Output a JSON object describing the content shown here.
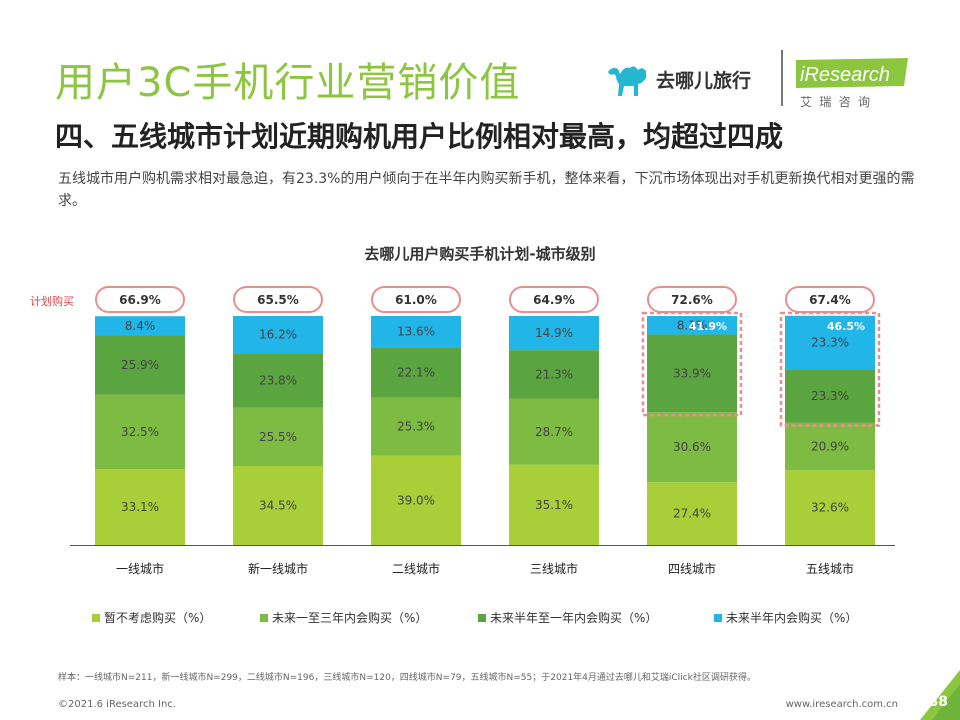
{
  "header": {
    "title": "用户3C手机行业营销价值",
    "subtitle": "四、五线城市计划近期购机用户比例相对最高，均超过四成",
    "description": "五线城市用户购机需求相对最急迫，有23.3%的用户倾向于在半年内购买新手机，整体来看，下沉市场体现出对手机更新换代相对更强的需求。"
  },
  "logos": {
    "qunar": "去哪儿旅行",
    "iresearch": "iResearch",
    "iresearch_cn": "艾 瑞 咨 询"
  },
  "colors": {
    "title_green": "#8cc63f",
    "seg1": "#a8cf38",
    "seg2": "#7dbb42",
    "seg3": "#5aa53f",
    "seg4": "#22b5e8",
    "highlight": "#e58f8f"
  },
  "chart_data": {
    "type": "bar",
    "stacked": true,
    "title": "去哪儿用户购买手机计划-城市级别",
    "plan_label": "计划购买",
    "categories": [
      "一线城市",
      "新一线城市",
      "二线城市",
      "三线城市",
      "四线城市",
      "五线城市"
    ],
    "series": [
      {
        "name": "暂不考虑购买（%）",
        "values": [
          33.1,
          34.5,
          39.0,
          35.1,
          27.4,
          32.6
        ]
      },
      {
        "name": "未来一至三年内会购买（%）",
        "values": [
          32.5,
          25.5,
          25.3,
          28.7,
          30.6,
          20.9
        ]
      },
      {
        "name": "未来半年至一年内会购买（%）",
        "values": [
          25.9,
          23.8,
          22.1,
          21.3,
          33.9,
          23.3
        ]
      },
      {
        "name": "未来半年内会购买（%）",
        "values": [
          8.4,
          16.2,
          13.6,
          14.9,
          8.1,
          23.3
        ]
      }
    ],
    "plan_totals": [
      "66.9%",
      "65.5%",
      "61.0%",
      "64.9%",
      "72.6%",
      "67.4%"
    ],
    "highlight_totals": [
      {
        "category": "四线城市",
        "label": "41.9%"
      },
      {
        "category": "五线城市",
        "label": "46.5%"
      }
    ],
    "ylim": [
      0,
      100
    ]
  },
  "footer": {
    "note": "样本：一线城市N=211，新一线城市N=299，二线城市N=196，三线城市N=120，四线城市N=79，五线城市N=55；于2021年4月通过去哪儿和艾瑞iClick社区调研获得。",
    "copyright": "©2021.6 iResearch Inc.",
    "website": "www.iresearch.com.cn",
    "page": "88"
  }
}
